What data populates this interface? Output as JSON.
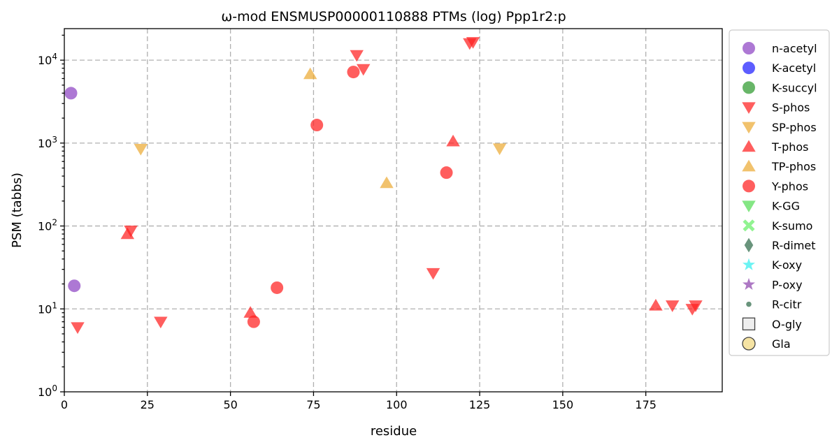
{
  "chart_data": {
    "type": "scatter",
    "title": "ω-mod ENSMUSP00000110888 PTMs (log) Ppp1r2:p",
    "xlabel": "residue",
    "ylabel": "PSM (tabbs)",
    "xlim": [
      0,
      198
    ],
    "ylim": [
      1,
      24000
    ],
    "yscale": "log",
    "x_ticks": [
      0,
      25,
      50,
      75,
      100,
      125,
      150,
      175
    ],
    "y_ticks": [
      {
        "value": 1,
        "base": "10",
        "exp": "0"
      },
      {
        "value": 10,
        "base": "10",
        "exp": "1"
      },
      {
        "value": 100,
        "base": "10",
        "exp": "2"
      },
      {
        "value": 1000,
        "base": "10",
        "exp": "3"
      },
      {
        "value": 10000,
        "base": "10",
        "exp": "4"
      }
    ],
    "grid": true,
    "legend_position": "outside-right",
    "series": [
      {
        "name": "n-acetyl",
        "marker": "circle",
        "color": "#8e44c4",
        "points": [
          [
            2,
            4000
          ],
          [
            3,
            19
          ]
        ]
      },
      {
        "name": "K-acetyl",
        "marker": "circle",
        "color": "#1f1fff",
        "points": []
      },
      {
        "name": "K-succyl",
        "marker": "circle",
        "color": "#2e9a2e",
        "points": []
      },
      {
        "name": "S-phos",
        "marker": "triangle-down",
        "color": "#ff2020",
        "points": [
          [
            4,
            6
          ],
          [
            20,
            88
          ],
          [
            29,
            7
          ],
          [
            88,
            11500
          ],
          [
            90,
            7800
          ],
          [
            111,
            27
          ],
          [
            122,
            16000
          ],
          [
            123,
            16500
          ],
          [
            183,
            11
          ],
          [
            189,
            10
          ],
          [
            190,
            11
          ]
        ]
      },
      {
        "name": "SP-phos",
        "marker": "triangle-down",
        "color": "#ebab34",
        "points": [
          [
            23,
            850
          ],
          [
            131,
            860
          ]
        ]
      },
      {
        "name": "T-phos",
        "marker": "triangle-up",
        "color": "#ff2020",
        "points": [
          [
            19,
            80
          ],
          [
            56,
            9
          ],
          [
            117,
            1050
          ],
          [
            178,
            11
          ]
        ]
      },
      {
        "name": "TP-phos",
        "marker": "triangle-up",
        "color": "#ebab34",
        "points": [
          [
            74,
            6800
          ],
          [
            97,
            330
          ]
        ]
      },
      {
        "name": "Y-phos",
        "marker": "circle",
        "color": "#ff2020",
        "points": [
          [
            57,
            7
          ],
          [
            64,
            18
          ],
          [
            76,
            1650
          ],
          [
            87,
            7200
          ],
          [
            115,
            440
          ]
        ]
      },
      {
        "name": "K-GG",
        "marker": "triangle-down",
        "color": "#55dd55",
        "points": []
      },
      {
        "name": "K-sumo",
        "marker": "x",
        "color": "#66ee66",
        "points": []
      },
      {
        "name": "R-dimet",
        "marker": "diamond",
        "color": "#2f6b4a",
        "points": []
      },
      {
        "name": "K-oxy",
        "marker": "star",
        "color": "#33eeee",
        "points": []
      },
      {
        "name": "P-oxy",
        "marker": "star",
        "color": "#8e44ad",
        "points": []
      },
      {
        "name": "R-citr",
        "marker": "dot",
        "color": "#2f6b4a",
        "points": []
      },
      {
        "name": "O-gly",
        "marker": "square-open",
        "color": "#eeeeee",
        "points": []
      },
      {
        "name": "Gla",
        "marker": "circle-open",
        "color": "#f5e3a3",
        "points": []
      }
    ]
  }
}
